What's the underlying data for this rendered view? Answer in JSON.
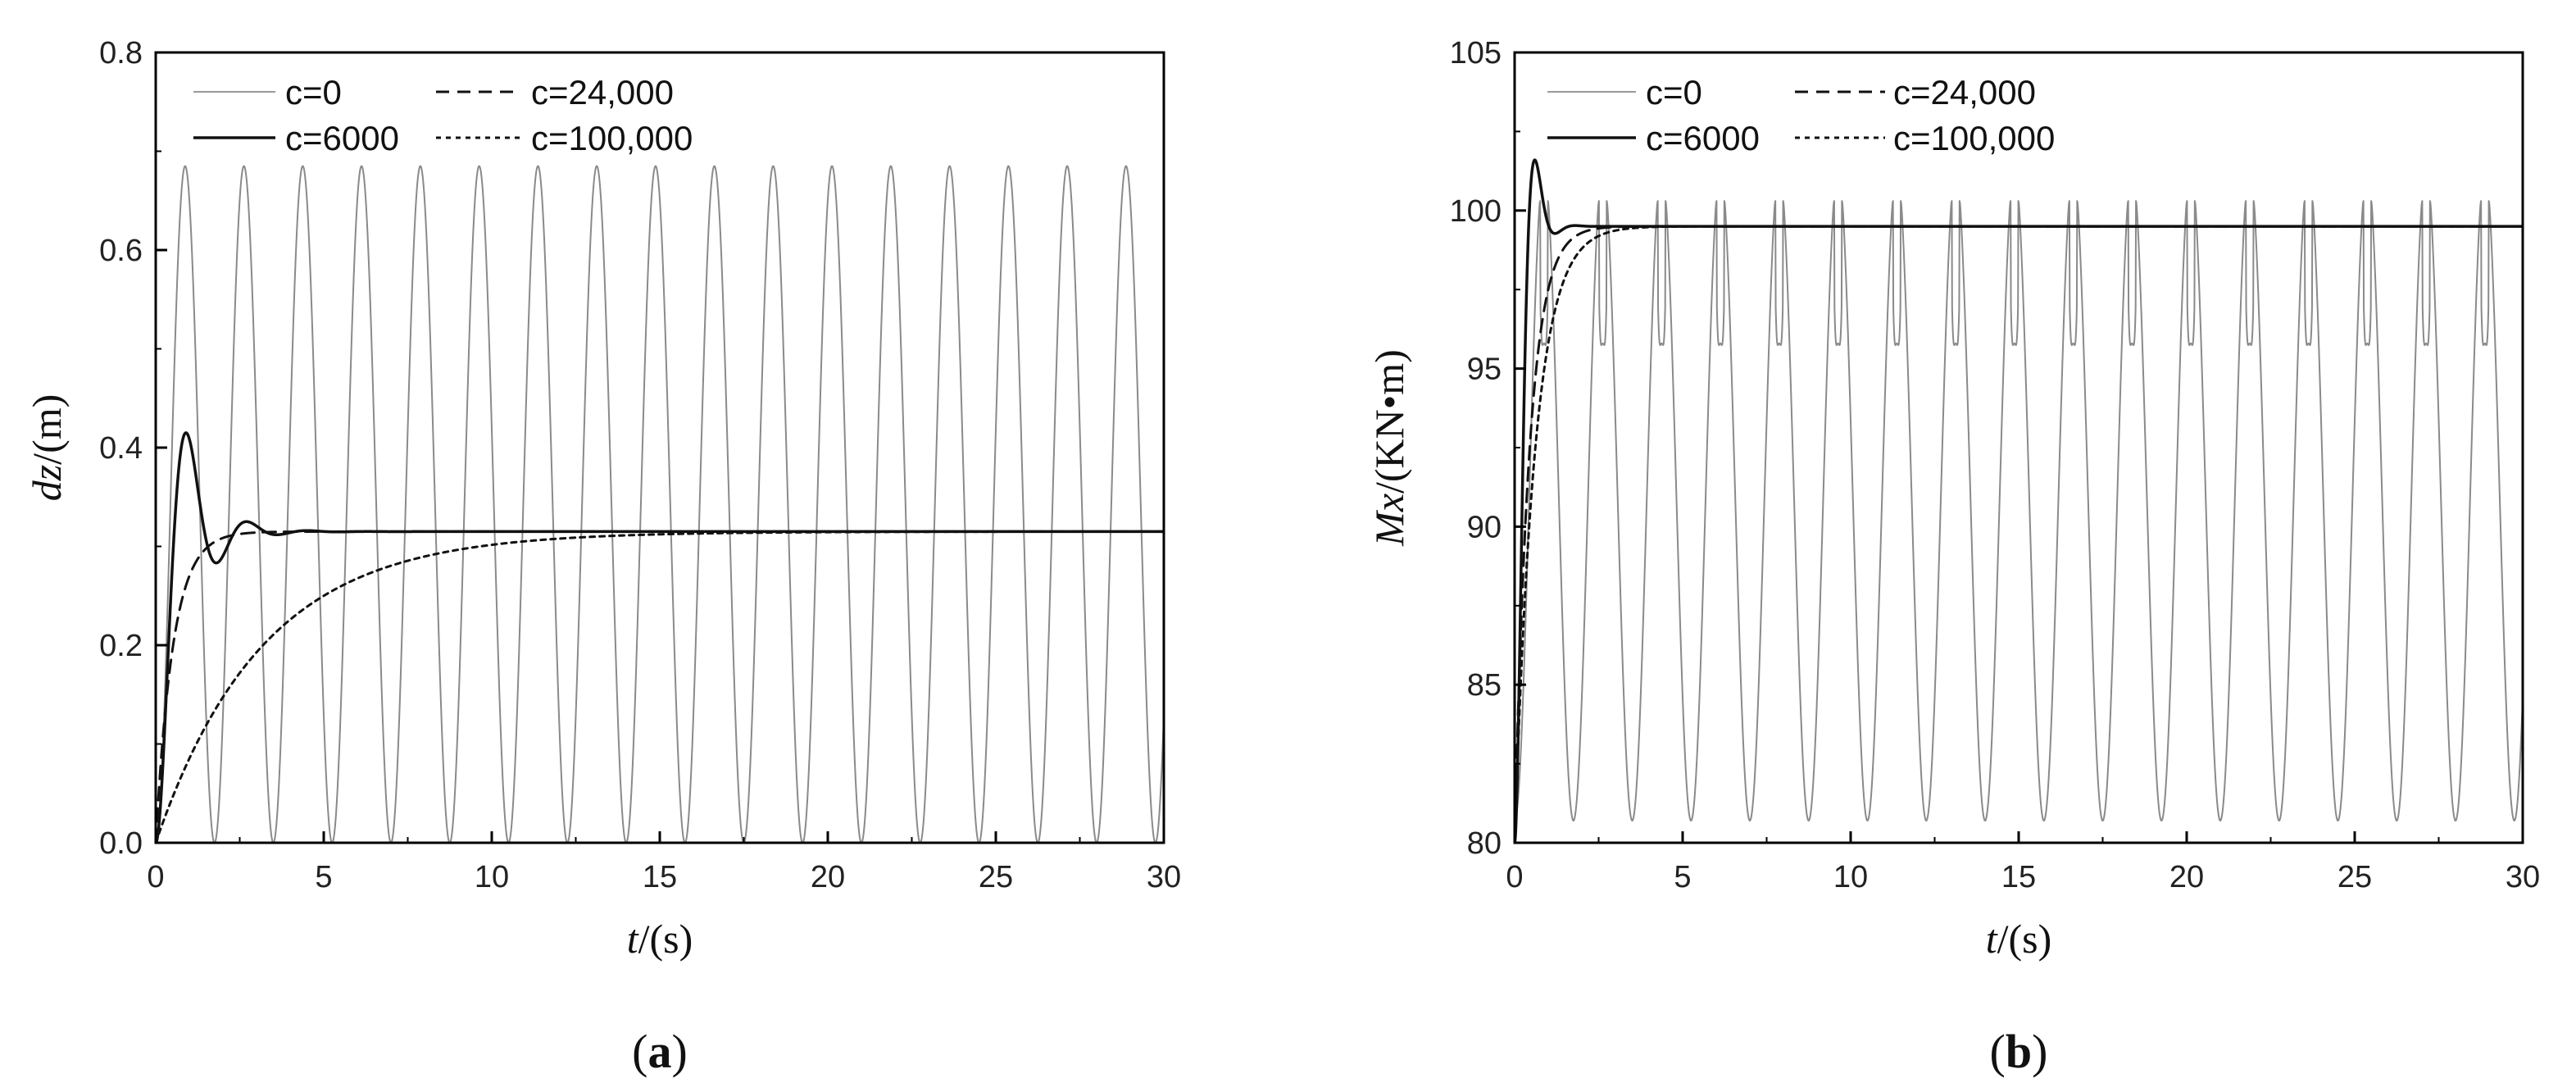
{
  "chart_data": [
    {
      "panel_label": "a",
      "type": "line",
      "xlabel_var": "t",
      "xlabel_unit": "/(s)",
      "ylabel_var": "dz",
      "ylabel_unit": "/(m)",
      "xlim": [
        0,
        30
      ],
      "ylim": [
        0,
        0.8
      ],
      "xticks": [
        0,
        5,
        10,
        15,
        20,
        25,
        30
      ],
      "yticks": [
        0.0,
        0.2,
        0.4,
        0.6,
        0.8
      ],
      "ytick_labels": [
        "0.0",
        "0.2",
        "0.4",
        "0.6",
        "0.8"
      ],
      "grid": false,
      "legend_placement": "top-left",
      "legend": [
        "c=0",
        "c=24,000",
        "c=6000",
        "c=100,000"
      ],
      "steady_state": 0.315,
      "series": [
        {
          "name": "c=0",
          "kind": "undamped_oscillation",
          "min": 0.0,
          "max": 0.685,
          "period": 1.75,
          "style": "thin-gray"
        },
        {
          "name": "c=6000",
          "kind": "damped_oscillation",
          "peak_time": 0.9,
          "peak_value": 0.415,
          "first_trough_time": 1.6,
          "first_trough_value": 0.285,
          "second_peak_time": 2.7,
          "second_peak_value": 0.322,
          "settle_value": 0.315,
          "style": "solid"
        },
        {
          "name": "c=24,000",
          "kind": "overdamped_fast",
          "value_at_1s": 0.27,
          "value_at_2s": 0.31,
          "settle_value": 0.315,
          "style": "dashed"
        },
        {
          "name": "c=100,000",
          "kind": "overdamped_slow",
          "value_at_5s": 0.25,
          "value_at_10s": 0.295,
          "value_at_15s": 0.31,
          "settle_value": 0.315,
          "style": "dotted"
        }
      ]
    },
    {
      "panel_label": "b",
      "type": "line",
      "xlabel_var": "t",
      "xlabel_unit": "/(s)",
      "ylabel_var": "Mx",
      "ylabel_unit": "/(KN•m)",
      "xlim": [
        0,
        30
      ],
      "ylim": [
        80,
        105
      ],
      "xticks": [
        0,
        5,
        10,
        15,
        20,
        25,
        30
      ],
      "yticks": [
        80,
        85,
        90,
        95,
        100,
        105
      ],
      "ytick_labels": [
        "80",
        "85",
        "90",
        "95",
        "100",
        "105"
      ],
      "grid": false,
      "legend_placement": "top-left",
      "legend": [
        "c=0",
        "c=24,000",
        "c=6000",
        "c=100,000"
      ],
      "steady_state": 99.5,
      "series": [
        {
          "name": "c=0",
          "kind": "double_hump_oscillation",
          "min": 80.7,
          "max": 101.4,
          "secondary_dip": 95.8,
          "period": 1.75,
          "style": "thin-gray"
        },
        {
          "name": "c=6000",
          "kind": "damped_oscillation",
          "peak_time": 0.6,
          "peak_value": 101.6,
          "first_trough_time": 1.7,
          "first_trough_value": 98.4,
          "second_peak_time": 2.7,
          "second_peak_value": 99.8,
          "settle_value": 99.5,
          "style": "solid"
        },
        {
          "name": "c=24,000",
          "kind": "overdamped_fast",
          "value_at_1s": 97.5,
          "value_at_2s": 99.0,
          "settle_value": 99.5,
          "style": "dashed"
        },
        {
          "name": "c=100,000",
          "kind": "overdamped_slow",
          "value_at_0.5s": 91.0,
          "value_at_5s": 97.5,
          "value_at_10s": 98.9,
          "value_at_15s": 99.3,
          "settle_value": 99.5,
          "style": "dotted"
        }
      ]
    }
  ]
}
